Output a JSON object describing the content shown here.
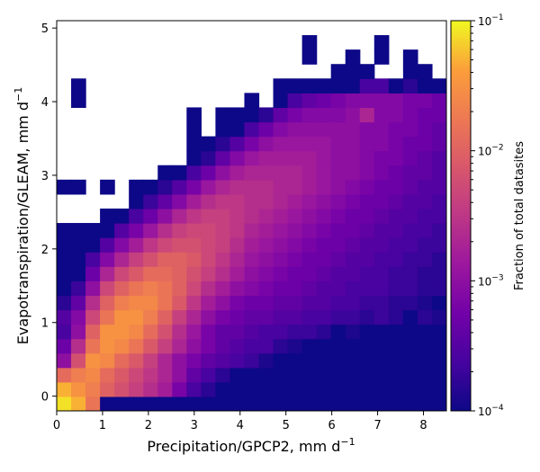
{
  "chart_data": {
    "type": "heatmap",
    "title": "",
    "xlabel": "Precipitation/GPCP2,",
    "xunit": "mm d",
    "xunit_exp": "−1",
    "ylabel": "Evapotranspiration/GLEAM,",
    "yunit": "mm d",
    "yunit_exp": "−1",
    "xlim": [
      0,
      8.5
    ],
    "ylim": [
      -0.2,
      5.1
    ],
    "x_ticks": [
      0,
      1,
      2,
      3,
      4,
      5,
      6,
      7,
      8
    ],
    "y_ticks": [
      0,
      1,
      2,
      3,
      4,
      5
    ],
    "x_tick_labels": [
      "0",
      "1",
      "2",
      "3",
      "4",
      "5",
      "6",
      "7",
      "8"
    ],
    "y_tick_labels": [
      "0",
      "1",
      "2",
      "3",
      "4",
      "5"
    ],
    "bin_width_x": 0.3148,
    "bin_width_y": 0.1963,
    "colormap": "plasma",
    "color_scale": "log",
    "colorbar": {
      "label": "Fraction of total datasites",
      "range": [
        0.0001,
        0.1
      ],
      "ticks": [
        {
          "value": 0.1,
          "base": "10",
          "exp": "−1"
        },
        {
          "value": 0.01,
          "base": "10",
          "exp": "−2"
        },
        {
          "value": 0.001,
          "base": "10",
          "exp": "−3"
        },
        {
          "value": 0.0001,
          "base": "10",
          "exp": "−4"
        }
      ]
    },
    "grid": false,
    "note_values": "log10 of fraction of total datasites, per bin (row 0 = lowest y bin)",
    "log10_grid": [
      [
        -1.1,
        -1.3,
        -1.8,
        -4,
        -4,
        -4,
        -4,
        -4,
        -4,
        -4,
        -4,
        -4,
        -4,
        -4,
        -4,
        -4,
        -4,
        -4,
        -4,
        -4,
        -4,
        -4,
        -4,
        -4,
        -4,
        -4,
        -4
      ],
      [
        -1.3,
        -1.5,
        -1.7,
        -2.0,
        -2.2,
        -2.4,
        -2.6,
        -2.8,
        -3.2,
        -3.6,
        -3.8,
        -4,
        -4,
        -4,
        -4,
        -4,
        -4,
        -4,
        -4,
        -4,
        -4,
        -4,
        -4,
        -4,
        -4,
        -4,
        -4
      ],
      [
        -1.9,
        -1.7,
        -1.6,
        -1.9,
        -2.1,
        -2.3,
        -2.5,
        -2.7,
        -3.0,
        -3.4,
        -3.6,
        -3.8,
        -4,
        -4,
        -4,
        -4,
        -4,
        -4,
        -4,
        -4,
        -4,
        -4,
        -4,
        -4,
        -4,
        -4,
        -4
      ],
      [
        -3.0,
        -2.2,
        -1.5,
        -1.6,
        -1.9,
        -2.1,
        -2.4,
        -2.7,
        -3.0,
        -3.2,
        -3.4,
        -3.5,
        -3.6,
        -3.7,
        -3.9,
        -4,
        -4,
        -4,
        -4,
        -4,
        -4,
        -4,
        -4,
        -4,
        -4,
        -4,
        -4
      ],
      [
        -3.3,
        -2.6,
        -1.8,
        -1.5,
        -1.6,
        -1.8,
        -2.1,
        -2.4,
        -2.7,
        -3.0,
        -3.2,
        -3.4,
        -3.5,
        -3.6,
        -3.6,
        -3.8,
        -3.9,
        -4,
        -4,
        -4,
        -4,
        -4,
        -4,
        -4,
        -4,
        -4,
        -4
      ],
      [
        -3.6,
        -3.0,
        -2.0,
        -1.5,
        -1.5,
        -1.6,
        -1.9,
        -2.2,
        -2.6,
        -2.9,
        -3.2,
        -3.4,
        -3.4,
        -3.5,
        -3.6,
        -3.6,
        -3.7,
        -3.7,
        -3.8,
        -4,
        -3.9,
        -4,
        -4,
        -4,
        -4,
        -4,
        -4
      ],
      [
        -3.5,
        -3.1,
        -2.3,
        -1.8,
        -1.5,
        -1.5,
        -1.7,
        -2.0,
        -2.4,
        -2.7,
        -3.0,
        -3.2,
        -3.3,
        -3.4,
        -3.4,
        -3.5,
        -3.5,
        -3.6,
        -3.6,
        -3.7,
        -3.7,
        -3.8,
        -3.7,
        -3.8,
        -4,
        -3.8,
        -3.9
      ],
      [
        -3.8,
        -3.4,
        -2.6,
        -2.0,
        -1.7,
        -1.6,
        -1.6,
        -1.8,
        -2.1,
        -2.5,
        -2.8,
        -3.0,
        -3.2,
        -3.3,
        -3.3,
        -3.4,
        -3.4,
        -3.5,
        -3.5,
        -3.6,
        -3.6,
        -3.7,
        -3.7,
        -3.8,
        -3.8,
        -3.9,
        -4
      ],
      [
        -4,
        -3.7,
        -3.0,
        -2.3,
        -2.0,
        -1.8,
        -1.7,
        -1.8,
        -2.0,
        -2.3,
        -2.6,
        -2.8,
        -3.0,
        -3.1,
        -3.2,
        -3.3,
        -3.3,
        -3.4,
        -3.5,
        -3.5,
        -3.6,
        -3.6,
        -3.6,
        -3.7,
        -3.7,
        -3.8,
        -3.8
      ],
      [
        -4,
        -4,
        -3.3,
        -2.7,
        -2.3,
        -2.1,
        -1.9,
        -1.9,
        -2.0,
        -2.2,
        -2.4,
        -2.6,
        -2.8,
        -3.0,
        -3.1,
        -3.2,
        -3.3,
        -3.3,
        -3.4,
        -3.5,
        -3.5,
        -3.6,
        -3.6,
        -3.7,
        -3.7,
        -3.8,
        -3.8
      ],
      [
        -4,
        -4,
        -3.6,
        -3.1,
        -2.7,
        -2.4,
        -2.2,
        -2.0,
        -2.0,
        -2.1,
        -2.3,
        -2.5,
        -2.7,
        -2.9,
        -3.0,
        -3.1,
        -3.2,
        -3.3,
        -3.3,
        -3.4,
        -3.5,
        -3.5,
        -3.6,
        -3.6,
        -3.7,
        -3.7,
        -3.8
      ],
      [
        -4,
        -4,
        -4,
        -3.5,
        -3.1,
        -2.8,
        -2.5,
        -2.3,
        -2.2,
        -2.2,
        -2.3,
        -2.4,
        -2.6,
        -2.8,
        -2.9,
        -3.0,
        -3.1,
        -3.2,
        -3.3,
        -3.3,
        -3.4,
        -3.5,
        -3.5,
        -3.6,
        -3.6,
        -3.7,
        -3.7
      ],
      [
        -4,
        -4,
        -4,
        -4,
        -3.5,
        -3.2,
        -2.9,
        -2.6,
        -2.4,
        -2.3,
        -2.3,
        -2.4,
        -2.5,
        -2.7,
        -2.8,
        -2.9,
        -3.0,
        -3.1,
        -3.2,
        -3.3,
        -3.3,
        -3.4,
        -3.5,
        -3.5,
        -3.6,
        -3.6,
        -3.7
      ],
      [
        null,
        null,
        null,
        -4,
        -4,
        -3.6,
        -3.3,
        -3.0,
        -2.7,
        -2.5,
        -2.4,
        -2.4,
        -2.5,
        -2.6,
        -2.7,
        -2.8,
        -2.9,
        -3.0,
        -3.1,
        -3.2,
        -3.3,
        -3.3,
        -3.4,
        -3.5,
        -3.5,
        -3.6,
        -3.6
      ],
      [
        null,
        null,
        null,
        null,
        null,
        -4,
        -3.7,
        -3.4,
        -3.1,
        -2.8,
        -2.6,
        -2.5,
        -2.5,
        -2.6,
        -2.6,
        -2.7,
        -2.8,
        -2.9,
        -3.0,
        -3.1,
        -3.2,
        -3.3,
        -3.3,
        -3.4,
        -3.5,
        -3.5,
        -3.6
      ],
      [
        -4,
        -4,
        null,
        -4,
        null,
        -4,
        -4,
        -3.8,
        -3.5,
        -3.2,
        -2.9,
        -2.7,
        -2.6,
        -2.6,
        -2.6,
        -2.7,
        -2.7,
        -2.8,
        -2.9,
        -3.0,
        -3.1,
        -3.2,
        -3.3,
        -3.3,
        -3.4,
        -3.5,
        -3.5
      ],
      [
        null,
        null,
        null,
        null,
        null,
        null,
        null,
        -4,
        -4,
        -3.6,
        -3.3,
        -3.0,
        -2.8,
        -2.7,
        -2.7,
        -2.7,
        -2.7,
        -2.8,
        -2.9,
        -3.0,
        -3.0,
        -3.1,
        -3.2,
        -3.3,
        -3.4,
        -3.4,
        -3.5
      ],
      [
        null,
        null,
        null,
        null,
        null,
        null,
        null,
        null,
        null,
        -4,
        -3.8,
        -3.4,
        -3.1,
        -2.9,
        -2.8,
        -2.8,
        -2.8,
        -2.8,
        -2.9,
        -3.0,
        -3.0,
        -3.1,
        -3.2,
        -3.2,
        -3.3,
        -3.4,
        -3.5
      ],
      [
        null,
        null,
        null,
        null,
        null,
        null,
        null,
        null,
        null,
        -4,
        -4,
        -3.8,
        -3.5,
        -3.2,
        -3.0,
        -2.9,
        -2.9,
        -2.9,
        -2.9,
        -3.0,
        -3.0,
        -3.1,
        -3.1,
        -3.2,
        -3.3,
        -3.3,
        -3.4
      ],
      [
        null,
        null,
        null,
        null,
        null,
        null,
        null,
        null,
        null,
        -4,
        null,
        -4,
        -4,
        -3.6,
        -3.3,
        -3.1,
        -3.0,
        -3.0,
        -3.0,
        -3.0,
        -3.0,
        -3.1,
        -3.1,
        -3.2,
        -3.2,
        -3.3,
        -3.4
      ],
      [
        null,
        null,
        null,
        null,
        null,
        null,
        null,
        null,
        null,
        -4,
        null,
        -4,
        -4,
        -4,
        -3.8,
        -3.4,
        -3.2,
        -3.1,
        -3.1,
        -3.1,
        -3.0,
        -2.7,
        -3.1,
        -3.1,
        -3.2,
        -3.3,
        -3.3
      ],
      [
        null,
        -4,
        null,
        null,
        null,
        null,
        null,
        null,
        null,
        null,
        null,
        null,
        null,
        -4,
        null,
        -4,
        -3.6,
        -3.4,
        -3.3,
        -3.2,
        -3.1,
        -3.1,
        -3.1,
        -3.1,
        -3.2,
        -3.2,
        -3.3
      ],
      [
        null,
        -4,
        null,
        null,
        null,
        null,
        null,
        null,
        null,
        null,
        null,
        null,
        null,
        null,
        null,
        -4,
        -4,
        -4,
        -4,
        -4,
        -4,
        -3.6,
        -3.6,
        -4,
        -3.8,
        -4,
        -4
      ],
      [
        null,
        null,
        null,
        null,
        null,
        null,
        null,
        null,
        null,
        null,
        null,
        null,
        null,
        null,
        null,
        null,
        null,
        null,
        null,
        -4,
        -4,
        -4,
        null,
        null,
        -4,
        -4,
        null
      ],
      [
        null,
        null,
        null,
        null,
        null,
        null,
        null,
        null,
        null,
        null,
        null,
        null,
        null,
        null,
        null,
        null,
        null,
        -4,
        null,
        null,
        -4,
        null,
        -4,
        null,
        -4,
        null,
        null
      ],
      [
        null,
        null,
        null,
        null,
        null,
        null,
        null,
        null,
        null,
        null,
        null,
        null,
        null,
        null,
        null,
        null,
        null,
        -4,
        null,
        null,
        null,
        null,
        -4,
        null,
        null,
        null,
        null
      ],
      [
        null,
        null,
        null,
        null,
        null,
        null,
        null,
        null,
        null,
        null,
        null,
        null,
        null,
        null,
        null,
        null,
        null,
        null,
        null,
        null,
        null,
        null,
        null,
        null,
        null,
        null,
        null
      ]
    ]
  }
}
